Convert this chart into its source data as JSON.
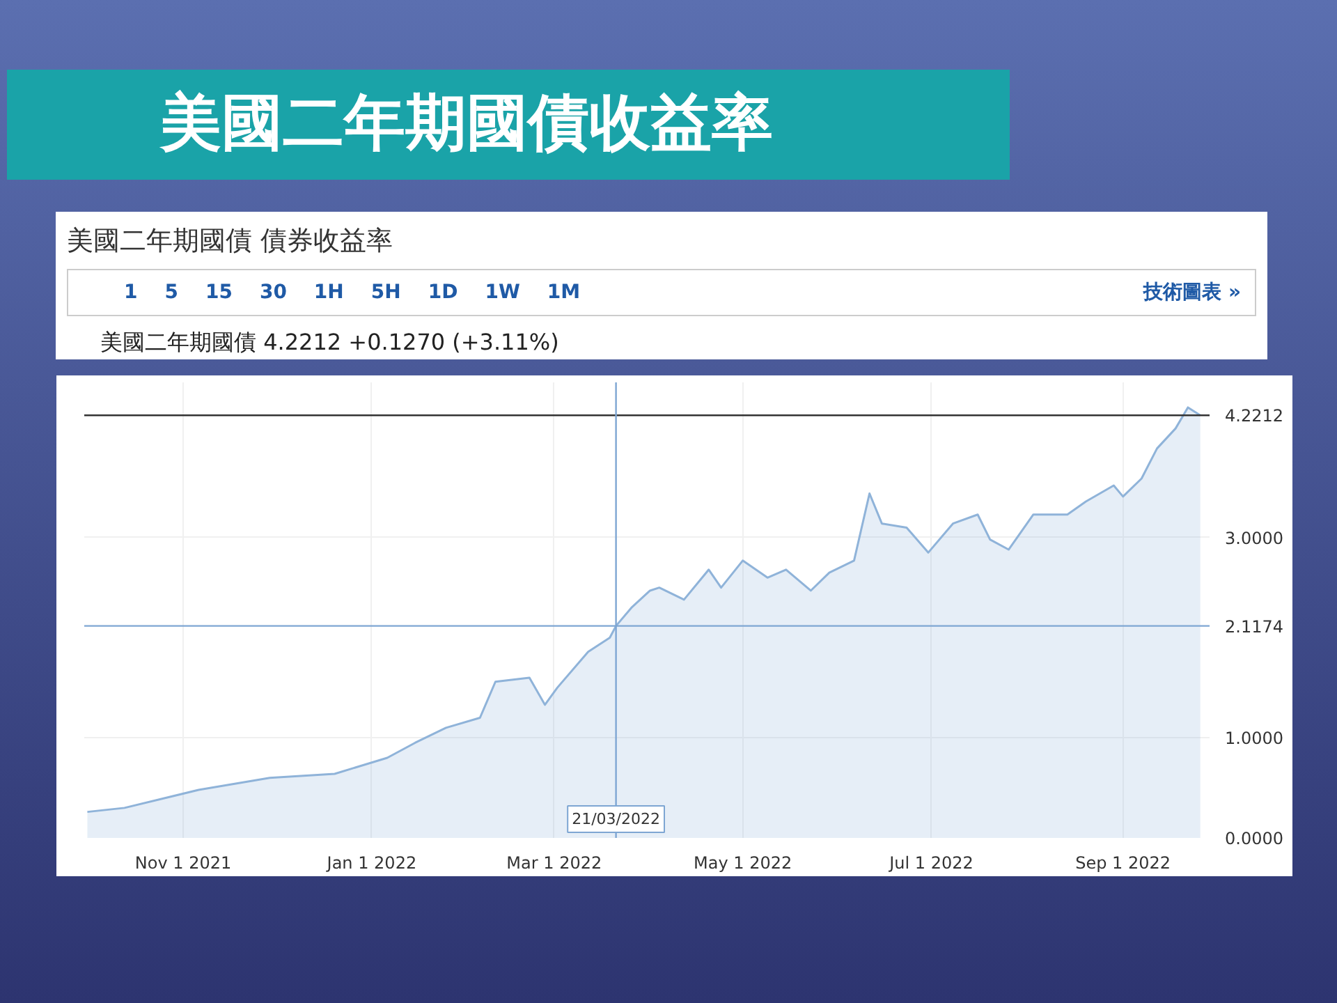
{
  "chart_data": {
    "type": "area",
    "title": "美國二年期國債收益率",
    "subtitle": "美國二年期國債 債券收益率",
    "annotations": [
      "1    5    15    30    1H    5H    1D    1W    1M",
      "技術圖表 »",
      "美國二年期國債 4.2212 +0.1270 (+3.11%)"
    ],
    "series": [
      {
        "color": "#8fb3d9",
        "x": [
          "2021-10-01",
          "2021-10-13",
          "2021-11-06",
          "2021-11-29",
          "2021-12-20",
          "2022-01-06",
          "2022-01-15",
          "2022-01-25",
          "2022-02-05",
          "2022-02-10",
          "2022-02-21",
          "2022-02-26",
          "2022-03-02",
          "2022-03-12",
          "2022-03-19",
          "2022-03-21",
          "2022-03-26",
          "2022-04-01",
          "2022-04-04",
          "2022-04-12",
          "2022-04-20",
          "2022-04-24",
          "2022-05-01",
          "2022-05-09",
          "2022-05-15",
          "2022-05-23",
          "2022-05-29",
          "2022-06-06",
          "2022-06-11",
          "2022-06-15",
          "2022-06-23",
          "2022-06-30",
          "2022-07-08",
          "2022-07-16",
          "2022-07-20",
          "2022-07-26",
          "2022-08-03",
          "2022-08-14",
          "2022-08-20",
          "2022-08-29",
          "2022-09-01",
          "2022-09-07",
          "2022-09-12",
          "2022-09-18",
          "2022-09-22",
          "2022-09-26"
        ],
        "values": [
          0.26,
          0.3,
          0.48,
          0.6,
          0.64,
          0.8,
          0.95,
          1.1,
          1.2,
          1.56,
          1.6,
          1.33,
          1.5,
          1.86,
          2.0,
          2.1174,
          2.3,
          2.47,
          2.5,
          2.38,
          2.68,
          2.5,
          2.77,
          2.6,
          2.68,
          2.47,
          2.65,
          2.77,
          3.44,
          3.14,
          3.1,
          2.85,
          3.14,
          3.23,
          2.98,
          2.88,
          3.23,
          3.23,
          3.36,
          3.52,
          3.41,
          3.59,
          3.89,
          4.09,
          4.3,
          4.2212
        ]
      }
    ],
    "xlim": [
      "2021-09-30",
      "2022-09-29"
    ],
    "xticks": [
      {
        "value": "2021-11-01",
        "label": "Nov 1 2021"
      },
      {
        "value": "2022-01-01",
        "label": "Jan 1 2022"
      },
      {
        "value": "2022-03-01",
        "label": "Mar 1 2022"
      },
      {
        "value": "2022-05-01",
        "label": "May 1 2022"
      },
      {
        "value": "2022-07-01",
        "label": "Jul 1 2022"
      },
      {
        "value": "2022-09-01",
        "label": "Sep 1 2022"
      }
    ],
    "ylim": [
      0,
      4.55
    ],
    "yticks": [
      {
        "value": 0,
        "label": "0.0000"
      },
      {
        "value": 1,
        "label": "1.0000"
      },
      {
        "value": 3,
        "label": "3.0000"
      }
    ],
    "ref_lines": [
      {
        "axis": "y",
        "value": 4.2212,
        "label": "4.2212",
        "color": "#333333"
      },
      {
        "axis": "y",
        "value": 2.1174,
        "label": "2.1174",
        "color": "#7ea6d3"
      },
      {
        "axis": "x",
        "value": "2022-03-21",
        "label": "21/03/2022",
        "color": "#7ea6d3"
      }
    ],
    "grid": true
  }
}
